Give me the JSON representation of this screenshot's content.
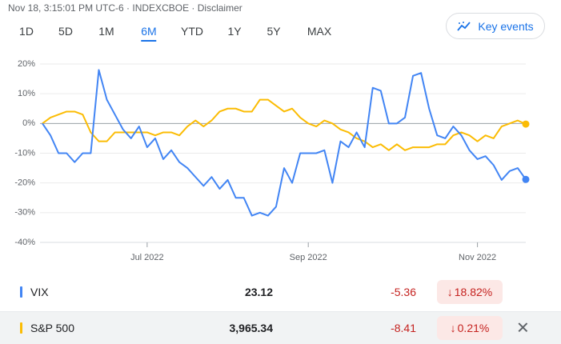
{
  "header": "Nov 18, 3:15:01 PM UTC-6 · INDEXCBOE · Disclaimer",
  "ranges": [
    "1D",
    "5D",
    "1M",
    "6M",
    "YTD",
    "1Y",
    "5Y",
    "MAX"
  ],
  "key_events": "Key events",
  "chart_data": {
    "type": "line",
    "categories": [
      null,
      null,
      null,
      null,
      null,
      null,
      null,
      null,
      null,
      null,
      null,
      null,
      null,
      "Jul 2022",
      null,
      null,
      null,
      null,
      null,
      null,
      null,
      null,
      null,
      null,
      null,
      null,
      null,
      null,
      null,
      null,
      null,
      null,
      null,
      "Sep 2022",
      null,
      null,
      null,
      null,
      null,
      null,
      null,
      null,
      null,
      null,
      null,
      null,
      null,
      null,
      null,
      null,
      null,
      null,
      null,
      null,
      "Nov 2022",
      null,
      null,
      null,
      null,
      null,
      null
    ],
    "series": [
      {
        "name": "VIX",
        "color": "#4285f4",
        "values": [
          0,
          -4,
          -10,
          -10,
          -13,
          -10,
          -10,
          18,
          8,
          3,
          -2,
          -5,
          -1,
          -8,
          -5,
          -12,
          -9,
          -13,
          -15,
          -18,
          -21,
          -18,
          -22,
          -19,
          -25,
          -25,
          -31,
          -30,
          -31,
          -28,
          -15,
          -20,
          -10,
          -10,
          -10,
          -9,
          -20,
          -6,
          -8,
          -3,
          -8,
          12,
          11,
          0,
          0,
          2,
          16,
          17,
          5,
          -4,
          -5,
          -1,
          -4,
          -9,
          -12,
          -11,
          -14,
          -19,
          -16,
          -15,
          -18.82
        ]
      },
      {
        "name": "S&P 500",
        "color": "#fbbc04",
        "values": [
          0,
          2,
          3,
          4,
          4,
          3,
          -3,
          -6,
          -6,
          -3,
          -3,
          -3,
          -3,
          -3,
          -4,
          -3,
          -3,
          -4,
          -1,
          1,
          -1,
          1,
          4,
          5,
          5,
          4,
          4,
          8,
          8,
          6,
          4,
          5,
          2,
          0,
          -1,
          1,
          0,
          -2,
          -3,
          -5,
          -6,
          -8,
          -7,
          -9,
          -7,
          -9,
          -8,
          -8,
          -8,
          -7,
          -7,
          -4,
          -3,
          -4,
          -6,
          -4,
          -5,
          -1,
          0,
          1,
          -0.21
        ]
      }
    ],
    "ylim": [
      -40,
      20
    ],
    "yticks": [
      {
        "value": 20,
        "label": "20%"
      },
      {
        "value": 10,
        "label": "10%"
      },
      {
        "value": 0,
        "label": "0%"
      },
      {
        "value": -10,
        "label": "-10%"
      },
      {
        "value": -20,
        "label": "-20%"
      },
      {
        "value": -30,
        "label": "-30%"
      },
      {
        "value": -40,
        "label": "-40%"
      }
    ],
    "grid": true
  },
  "quotes": [
    {
      "price": "23.12",
      "change": "-5.36",
      "change_pct": "18.82%"
    },
    {
      "price": "3,965.34",
      "change": "-8.41",
      "change_pct": "0.21%"
    }
  ]
}
